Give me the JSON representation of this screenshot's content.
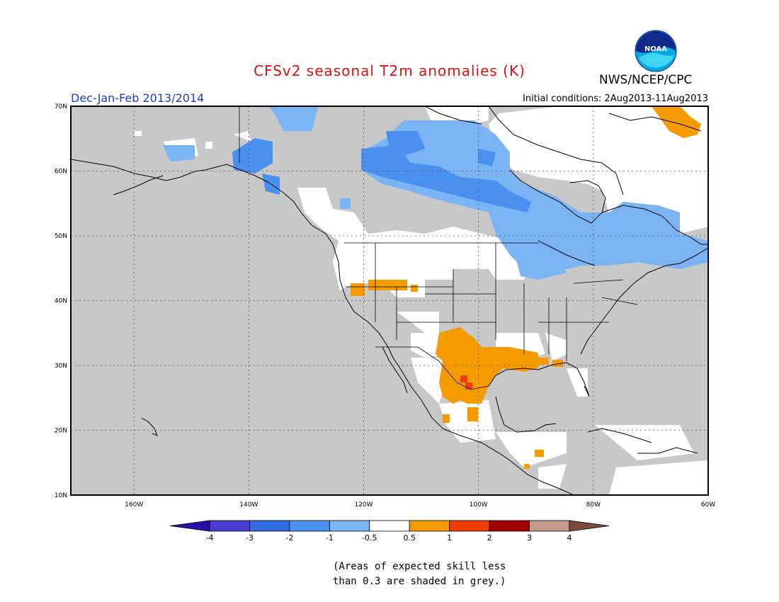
{
  "title": "CFSv2 seasonal T2m anomalies (K)",
  "agency": "NWS/NCEP/CPC",
  "logo_text": "NOAA",
  "period": "Dec-Jan-Feb 2013/2014",
  "initial_conditions": "Initial conditions: 2Aug2013-11Aug2013",
  "note": [
    "(Areas of expected skill less",
    "than 0.3 are shaded in grey.)"
  ],
  "map": {
    "lat_labels": [
      "70N",
      "60N",
      "50N",
      "40N",
      "30N",
      "20N",
      "10N"
    ],
    "lon_labels": [
      "160W",
      "140W",
      "120W",
      "100W",
      "80W",
      "60W"
    ],
    "lon_range": [
      -171,
      -60
    ],
    "lat_range": [
      10,
      70
    ]
  },
  "colorbar": {
    "labels": [
      "-4",
      "-3",
      "-2",
      "-1",
      "-0.5",
      "0.5",
      "1",
      "2",
      "3",
      "4"
    ],
    "colors": [
      "#2a0ea8",
      "#4a3ed0",
      "#2e6ee0",
      "#4a90ee",
      "#7ab4f5",
      "#ffffff",
      "#f59b00",
      "#f03c00",
      "#a00000",
      "#c49a88",
      "#7a4a3a"
    ]
  }
}
